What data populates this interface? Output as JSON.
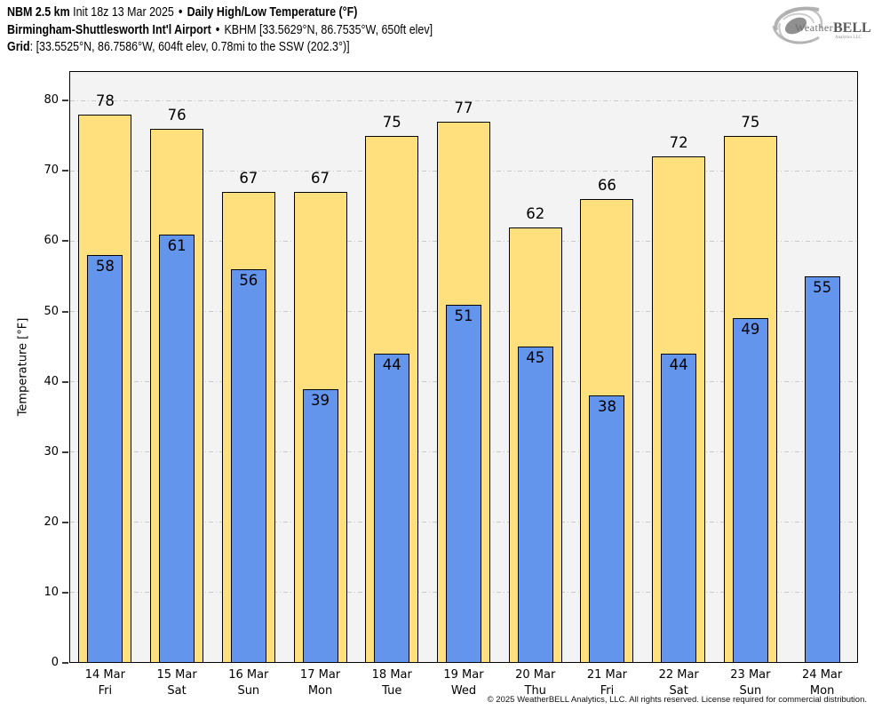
{
  "header": {
    "line1_model": "NBM 2.5 km",
    "line1_init": "Init 18z 13 Mar 2025",
    "separator": "•",
    "line1_title": "Daily High/Low Temperature (°F)",
    "line2_station": "Birmingham-Shuttlesworth Int'l Airport",
    "line2_info": "KBHM [33.5629°N, 86.7535°W, 650ft elev]",
    "line3_label": "Grid",
    "line3_info": ": [33.5525°N, 86.7586°W, 604ft elev, 0.78mi to the SSW (202.3°)]"
  },
  "logo": {
    "word_weather": "Weather",
    "word_bell": "BELL",
    "sub": "Analytics LLC"
  },
  "chart_data": {
    "type": "bar",
    "title": "Daily High/Low Temperature (°F)",
    "ylabel": "Temperature [°F]",
    "ylim": [
      0,
      84.2
    ],
    "yticks": [
      0,
      10,
      20,
      30,
      40,
      50,
      60,
      70,
      80
    ],
    "grid": true,
    "legend_position": "none",
    "categories": [
      {
        "date": "14 Mar",
        "day": "Fri"
      },
      {
        "date": "15 Mar",
        "day": "Sat"
      },
      {
        "date": "16 Mar",
        "day": "Sun"
      },
      {
        "date": "17 Mar",
        "day": "Mon"
      },
      {
        "date": "18 Mar",
        "day": "Tue"
      },
      {
        "date": "19 Mar",
        "day": "Wed"
      },
      {
        "date": "20 Mar",
        "day": "Thu"
      },
      {
        "date": "21 Mar",
        "day": "Fri"
      },
      {
        "date": "22 Mar",
        "day": "Sat"
      },
      {
        "date": "23 Mar",
        "day": "Sun"
      },
      {
        "date": "24 Mar",
        "day": "Mon"
      }
    ],
    "series": [
      {
        "name": "High",
        "color": "#ffe07d",
        "border": "#000000",
        "values": [
          78,
          76,
          67,
          67,
          75,
          77,
          62,
          66,
          72,
          75,
          null
        ]
      },
      {
        "name": "Low",
        "color": "#6495ed",
        "border": "#000000",
        "values": [
          58,
          61,
          56,
          39,
          44,
          51,
          45,
          38,
          44,
          49,
          55
        ]
      }
    ]
  },
  "footer": "© 2025 WeatherBELL Analytics, LLC. All rights reserved. License required for commercial distribution."
}
